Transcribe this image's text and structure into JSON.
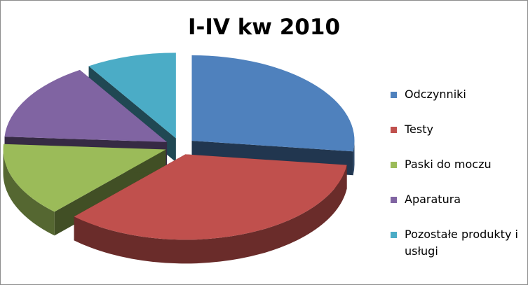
{
  "chart_data": {
    "type": "pie",
    "title": "I-IV kw 2010",
    "three_d": true,
    "exploded": true,
    "legend_position": "right",
    "categories": [
      "Odczynniki",
      "Testy",
      "Paski do moczu",
      "Aparatura",
      "Pozostałe produkty i usługi"
    ],
    "values": [
      27,
      35,
      14,
      15,
      9
    ],
    "unit": "%",
    "colors": [
      "#4f81bd",
      "#c0504d",
      "#9bbb59",
      "#8064a2",
      "#4bacc6"
    ]
  }
}
